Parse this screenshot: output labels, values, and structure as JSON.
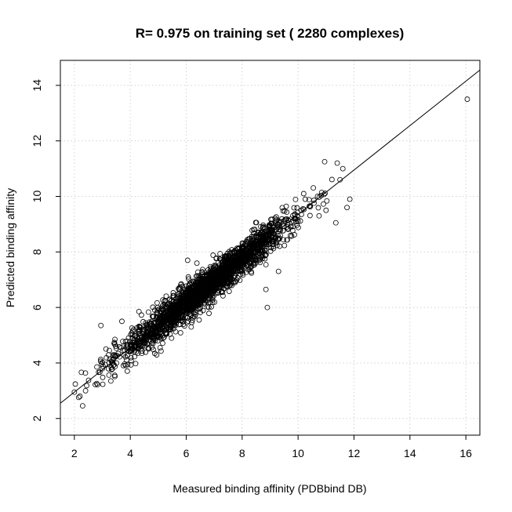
{
  "chart_data": {
    "type": "scatter",
    "title": "R= 0.975 on training set ( 2280  complexes)",
    "xlabel": "Measured binding affinity (PDBbind DB)",
    "ylabel": "Predicted binding affinity",
    "xlim": [
      1.5,
      16.5
    ],
    "ylim": [
      1.4,
      14.9
    ],
    "x_ticks": [
      2,
      4,
      6,
      8,
      10,
      12,
      14,
      16
    ],
    "y_ticks": [
      2,
      4,
      6,
      8,
      10,
      12,
      14
    ],
    "grid": true,
    "point_count": 2280,
    "fit_line": {
      "slope": 0.8,
      "intercept": 1.35,
      "x_range": [
        1.5,
        16.5
      ]
    },
    "highlight_points": [
      {
        "x": 2.0,
        "y": 2.95
      },
      {
        "x": 2.2,
        "y": 2.8
      },
      {
        "x": 2.95,
        "y": 5.35
      },
      {
        "x": 2.4,
        "y": 3.0
      },
      {
        "x": 6.05,
        "y": 7.7
      },
      {
        "x": 8.9,
        "y": 6.0
      },
      {
        "x": 10.75,
        "y": 9.3
      },
      {
        "x": 11.0,
        "y": 9.5
      },
      {
        "x": 11.35,
        "y": 9.05
      },
      {
        "x": 11.5,
        "y": 10.6
      },
      {
        "x": 11.4,
        "y": 11.2
      },
      {
        "x": 11.6,
        "y": 11.0
      },
      {
        "x": 11.75,
        "y": 9.6
      },
      {
        "x": 11.85,
        "y": 9.9
      },
      {
        "x": 10.95,
        "y": 11.25
      },
      {
        "x": 10.2,
        "y": 10.1
      },
      {
        "x": 10.0,
        "y": 9.1
      },
      {
        "x": 9.6,
        "y": 8.9
      },
      {
        "x": 8.85,
        "y": 6.65
      },
      {
        "x": 9.3,
        "y": 7.3
      },
      {
        "x": 7.3,
        "y": 6.55
      },
      {
        "x": 3.25,
        "y": 4.45
      },
      {
        "x": 3.7,
        "y": 5.5
      },
      {
        "x": 16.05,
        "y": 13.5
      }
    ]
  }
}
